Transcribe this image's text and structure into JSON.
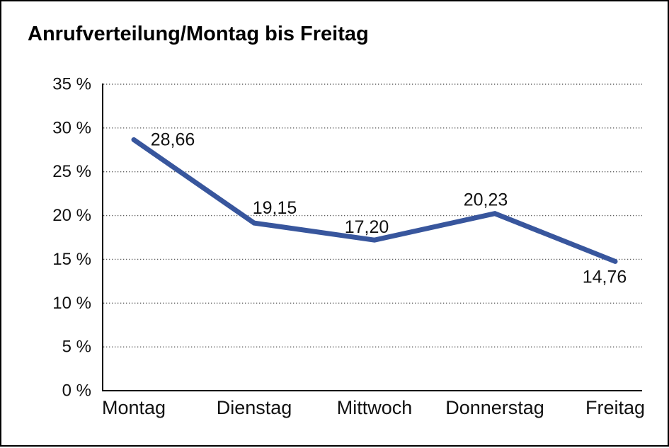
{
  "window": {
    "background": "#ffffff",
    "border_color": "#000000"
  },
  "chart_data": {
    "type": "line",
    "title": "Anrufverteilung/Montag bis Freitag",
    "categories": [
      "Montag",
      "Dienstag",
      "Mittwoch",
      "Donnerstag",
      "Freitag"
    ],
    "values": [
      28.66,
      19.15,
      17.2,
      20.23,
      14.76
    ],
    "value_labels": [
      "28,66",
      "19,15",
      "17,20",
      "20,23",
      "14,76"
    ],
    "y_ticks": [
      0,
      5,
      10,
      15,
      20,
      25,
      30,
      35
    ],
    "y_tick_labels": [
      "0 %",
      "5 %",
      "10 %",
      "15 %",
      "20 %",
      "25 %",
      "30 %",
      "35 %"
    ],
    "ylim": [
      0,
      35
    ],
    "xlabel": "",
    "ylabel": "",
    "legend": "none",
    "grid": "horizontal-dotted",
    "line_color": "#38569D",
    "axis_color": "#000000",
    "grid_color": "#5f5f5f",
    "text_color": "#111111"
  }
}
